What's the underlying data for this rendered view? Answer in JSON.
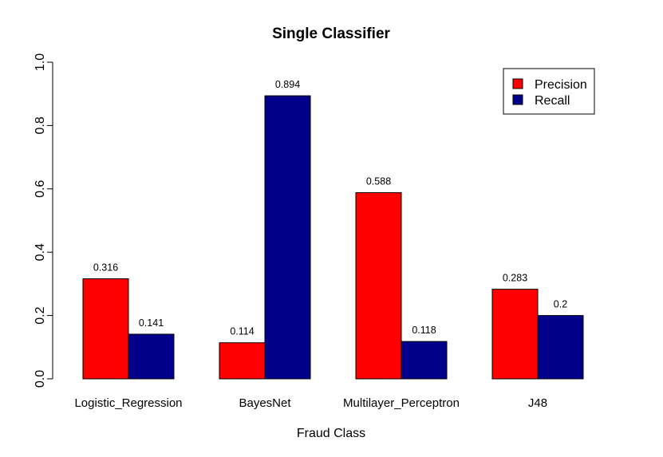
{
  "chart_data": {
    "type": "bar",
    "title": "Single Classifier",
    "xlabel": "Fraud Class",
    "ylabel": "",
    "ylim": [
      0,
      1.0
    ],
    "yticks": [
      "0.0",
      "0.2",
      "0.4",
      "0.6",
      "0.8",
      "1.0"
    ],
    "categories": [
      "Logistic_Regression",
      "BayesNet",
      "Multilayer_Perceptron",
      "J48"
    ],
    "series": [
      {
        "name": "Precision",
        "color": "#ff0000",
        "values": [
          0.316,
          0.114,
          0.588,
          0.283
        ],
        "labels": [
          "0.316",
          "0.114",
          "0.588",
          "0.283"
        ]
      },
      {
        "name": "Recall",
        "color": "#00008b",
        "values": [
          0.141,
          0.894,
          0.118,
          0.2
        ],
        "labels": [
          "0.141",
          "0.894",
          "0.118",
          "0.2"
        ]
      }
    ],
    "legend_position": "top-right",
    "grid": false
  }
}
